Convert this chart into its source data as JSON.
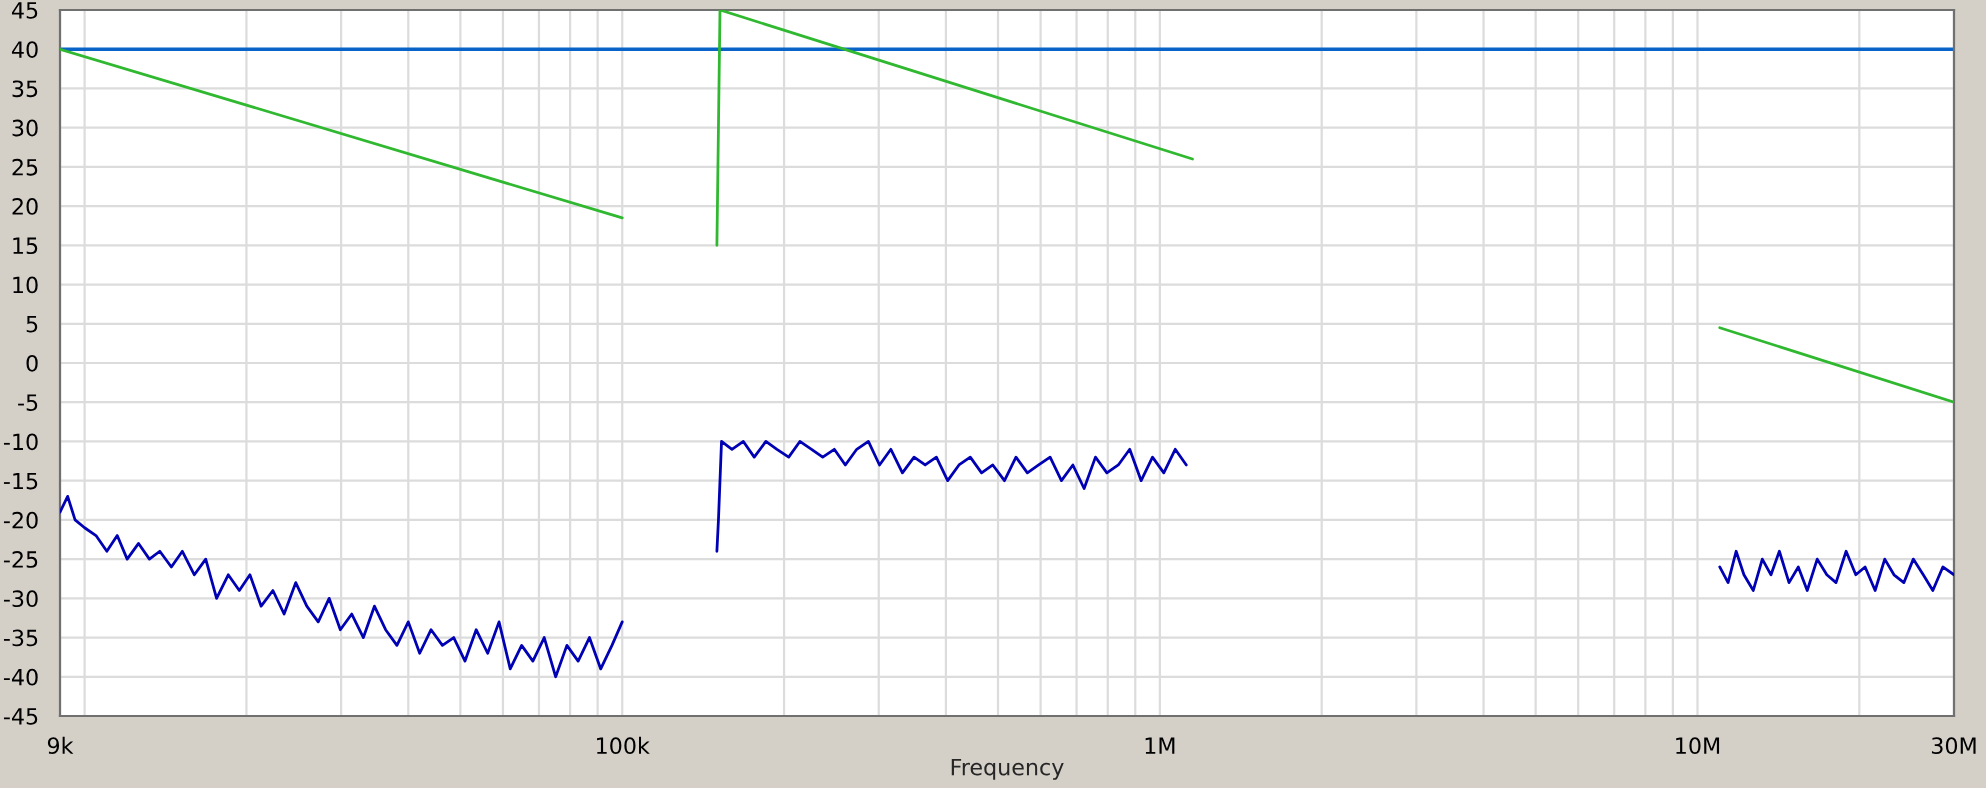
{
  "chart_data": {
    "type": "line",
    "xlabel": "Frequency",
    "log": "x",
    "grid": true,
    "marker": "none",
    "line_style": "solid",
    "xlim": [
      9000,
      30000000
    ],
    "ylim": [
      -45,
      45
    ],
    "xticks": [
      {
        "value": 9000,
        "label": "9k"
      },
      {
        "value": 10000,
        "label": null
      },
      {
        "value": 20000,
        "label": null
      },
      {
        "value": 30000,
        "label": null
      },
      {
        "value": 40000,
        "label": null
      },
      {
        "value": 50000,
        "label": null
      },
      {
        "value": 60000,
        "label": null
      },
      {
        "value": 70000,
        "label": null
      },
      {
        "value": 80000,
        "label": null
      },
      {
        "value": 90000,
        "label": null
      },
      {
        "value": 100000,
        "label": "100k"
      },
      {
        "value": 200000,
        "label": null
      },
      {
        "value": 300000,
        "label": null
      },
      {
        "value": 400000,
        "label": null
      },
      {
        "value": 500000,
        "label": null
      },
      {
        "value": 600000,
        "label": null
      },
      {
        "value": 700000,
        "label": null
      },
      {
        "value": 800000,
        "label": null
      },
      {
        "value": 900000,
        "label": null
      },
      {
        "value": 1000000,
        "label": "1M"
      },
      {
        "value": 2000000,
        "label": null
      },
      {
        "value": 3000000,
        "label": null
      },
      {
        "value": 4000000,
        "label": null
      },
      {
        "value": 5000000,
        "label": null
      },
      {
        "value": 6000000,
        "label": null
      },
      {
        "value": 7000000,
        "label": null
      },
      {
        "value": 8000000,
        "label": null
      },
      {
        "value": 9000000,
        "label": null
      },
      {
        "value": 10000000,
        "label": "10M"
      },
      {
        "value": 20000000,
        "label": null
      },
      {
        "value": 30000000,
        "label": "30M"
      }
    ],
    "yticks": [
      -45,
      -40,
      -35,
      -30,
      -25,
      -20,
      -15,
      -10,
      -5,
      0,
      5,
      10,
      15,
      20,
      25,
      30,
      35,
      40,
      45
    ],
    "ref_lines": [
      {
        "axis": "y",
        "value": 40,
        "color": "#0a64c8"
      }
    ],
    "series": [
      {
        "color": "#30b830",
        "x": [
          9000,
          100000,
          120000,
          150000,
          152000,
          1150000,
          5000000,
          11000000,
          30000000
        ],
        "values": [
          40,
          18.5,
          null,
          15,
          45,
          26,
          null,
          4.5,
          -5
        ]
      },
      {
        "color": "#0000b4",
        "x": [
          9000,
          9300,
          9600,
          10000,
          10500,
          11000,
          11500,
          12000,
          12600,
          13200,
          13800,
          14500,
          15200,
          16000,
          16800,
          17600,
          18500,
          19400,
          20300,
          21300,
          22400,
          23500,
          24700,
          25900,
          27200,
          28500,
          29900,
          31400,
          33000,
          34600,
          36300,
          38100,
          40000,
          42000,
          44100,
          46300,
          48600,
          51000,
          53500,
          56200,
          59000,
          61900,
          65000,
          68200,
          71600,
          75200,
          78900,
          82800,
          86900,
          91200,
          95700,
          100000,
          120000,
          150000,
          151000,
          153000,
          160000,
          168000,
          176000,
          185000,
          194000,
          204000,
          214000,
          225000,
          236000,
          248000,
          260000,
          273000,
          287000,
          301000,
          316000,
          332000,
          349000,
          366000,
          384000,
          403000,
          423000,
          444000,
          466000,
          489000,
          514000,
          540000,
          567000,
          595000,
          625000,
          656000,
          689000,
          723000,
          759000,
          797000,
          837000,
          879000,
          923000,
          969000,
          1017000,
          1068000,
          1120000,
          5000000,
          11000000,
          11400000,
          11800000,
          12200000,
          12700000,
          13200000,
          13700000,
          14200000,
          14800000,
          15400000,
          16000000,
          16700000,
          17400000,
          18100000,
          18900000,
          19700000,
          20500000,
          21400000,
          22300000,
          23200000,
          24200000,
          25200000,
          26300000,
          27400000,
          28600000,
          30000000
        ],
        "values": [
          -19,
          -17,
          -20,
          -21,
          -22,
          -24,
          -22,
          -25,
          -23,
          -25,
          -24,
          -26,
          -24,
          -27,
          -25,
          -30,
          -27,
          -29,
          -27,
          -31,
          -29,
          -32,
          -28,
          -31,
          -33,
          -30,
          -34,
          -32,
          -35,
          -31,
          -34,
          -36,
          -33,
          -37,
          -34,
          -36,
          -35,
          -38,
          -34,
          -37,
          -33,
          -39,
          -36,
          -38,
          -35,
          -40,
          -36,
          -38,
          -35,
          -39,
          -36,
          -33,
          null,
          -24,
          -20,
          -10,
          -11,
          -10,
          -12,
          -10,
          -11,
          -12,
          -10,
          -11,
          -12,
          -11,
          -13,
          -11,
          -10,
          -13,
          -11,
          -14,
          -12,
          -13,
          -12,
          -15,
          -13,
          -12,
          -14,
          -13,
          -15,
          -12,
          -14,
          -13,
          -12,
          -15,
          -13,
          -16,
          -12,
          -14,
          -13,
          -11,
          -15,
          -12,
          -14,
          -11,
          -13,
          null,
          -26,
          -28,
          -24,
          -27,
          -29,
          -25,
          -27,
          -24,
          -28,
          -26,
          -29,
          -25,
          -27,
          -28,
          -24,
          -27,
          -26,
          -29,
          -25,
          -27,
          -28,
          -25,
          -27,
          -29,
          -26,
          -27
        ]
      }
    ]
  }
}
